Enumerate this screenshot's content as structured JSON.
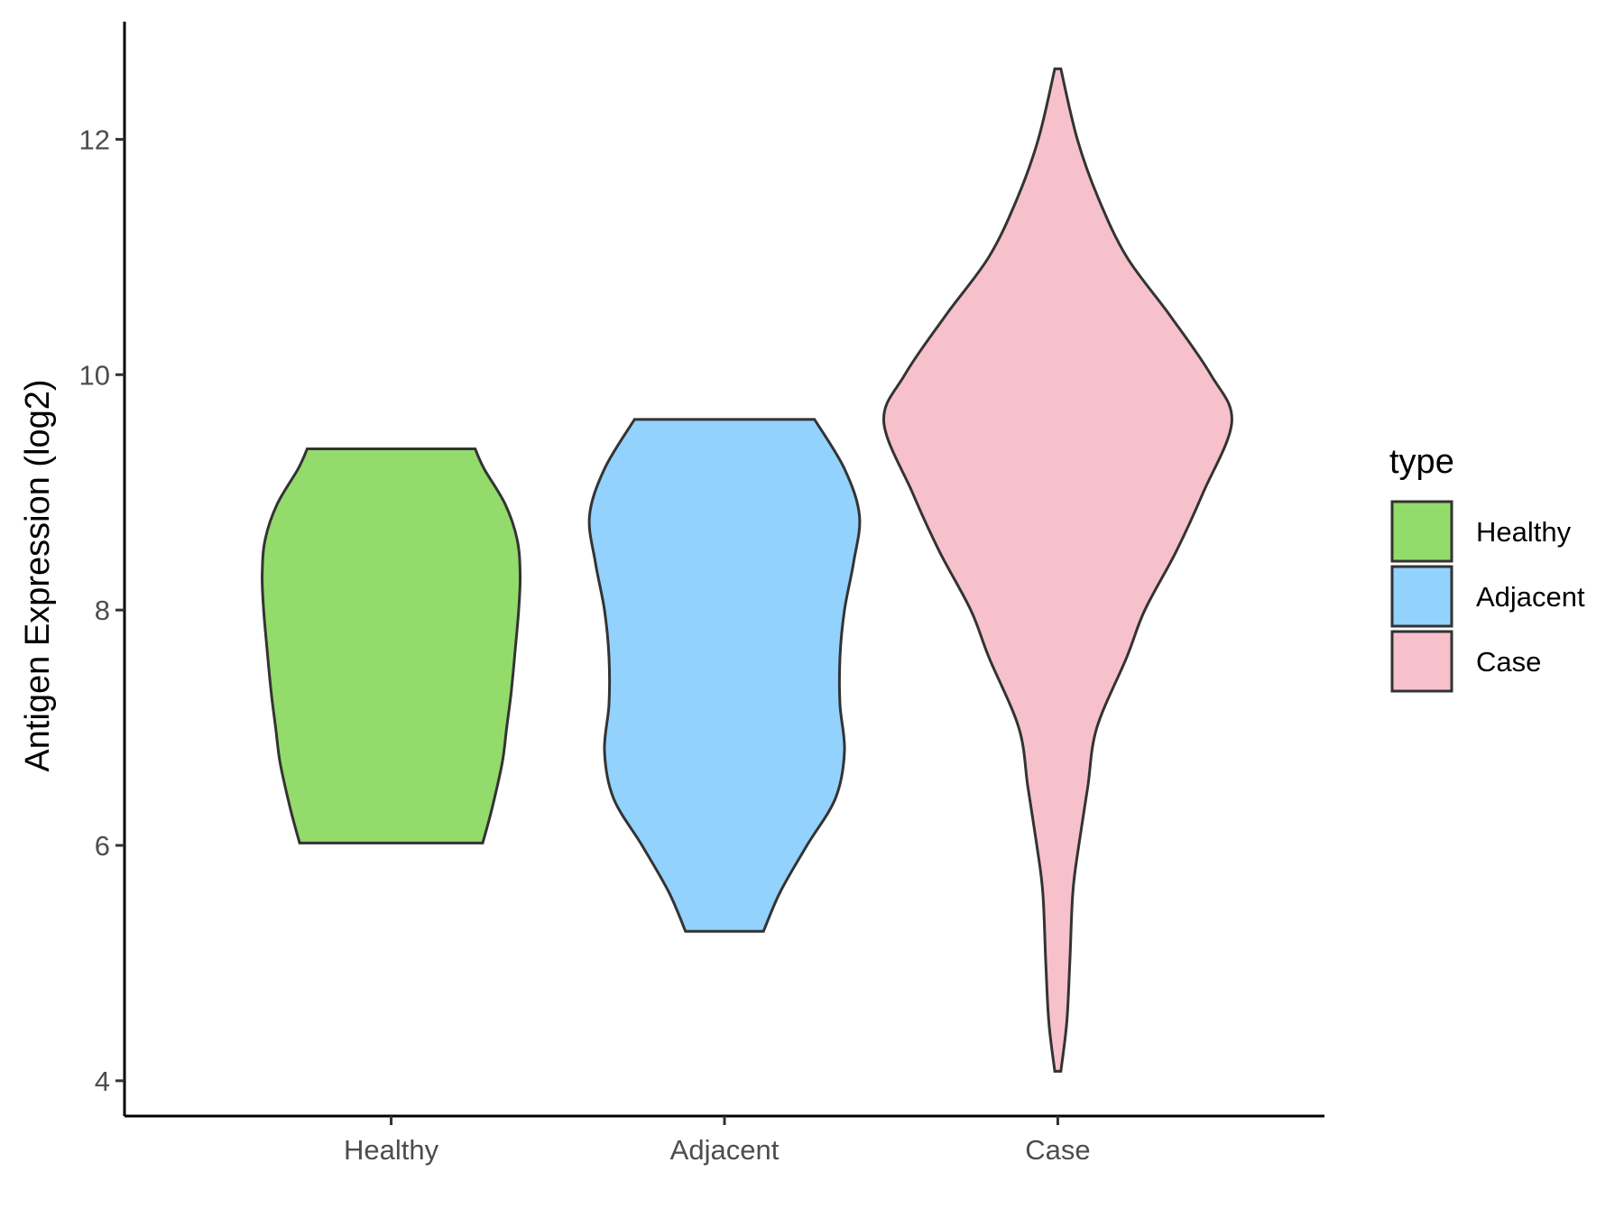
{
  "chart_data": {
    "type": "violin",
    "title": "",
    "xlabel": "",
    "ylabel": "Antigen Expression (log2)",
    "ylim": [
      3.7,
      13.0
    ],
    "yticks": [
      4,
      6,
      8,
      10,
      12
    ],
    "grid": false,
    "categories": [
      "Healthy",
      "Adjacent",
      "Case"
    ],
    "legend": {
      "title": "type",
      "position": "right",
      "entries": [
        "Healthy",
        "Adjacent",
        "Case"
      ]
    },
    "series": [
      {
        "name": "Healthy",
        "color": "#93DB6B",
        "min": 6.02,
        "max": 9.37,
        "profile": [
          [
            6.02,
            0.61
          ],
          [
            6.3,
            0.67
          ],
          [
            6.7,
            0.74
          ],
          [
            7.0,
            0.77
          ],
          [
            7.3,
            0.8
          ],
          [
            7.7,
            0.83
          ],
          [
            8.0,
            0.85
          ],
          [
            8.3,
            0.86
          ],
          [
            8.6,
            0.84
          ],
          [
            8.9,
            0.76
          ],
          [
            9.2,
            0.62
          ],
          [
            9.37,
            0.56
          ]
        ]
      },
      {
        "name": "Adjacent",
        "color": "#92D2FD",
        "min": 5.27,
        "max": 9.62,
        "profile": [
          [
            5.27,
            0.26
          ],
          [
            5.6,
            0.37
          ],
          [
            6.0,
            0.55
          ],
          [
            6.4,
            0.74
          ],
          [
            6.8,
            0.8
          ],
          [
            7.2,
            0.77
          ],
          [
            7.6,
            0.77
          ],
          [
            8.0,
            0.8
          ],
          [
            8.4,
            0.86
          ],
          [
            8.8,
            0.9
          ],
          [
            9.2,
            0.8
          ],
          [
            9.62,
            0.6
          ]
        ]
      },
      {
        "name": "Case",
        "color": "#F7C1CC",
        "min": 4.08,
        "max": 12.6,
        "profile": [
          [
            4.08,
            0.02
          ],
          [
            4.5,
            0.06
          ],
          [
            5.0,
            0.08
          ],
          [
            5.6,
            0.1
          ],
          [
            6.0,
            0.14
          ],
          [
            6.5,
            0.2
          ],
          [
            7.0,
            0.26
          ],
          [
            7.6,
            0.46
          ],
          [
            8.0,
            0.58
          ],
          [
            8.5,
            0.79
          ],
          [
            9.0,
            0.97
          ],
          [
            9.6,
            1.16
          ],
          [
            10.0,
            1.02
          ],
          [
            10.5,
            0.75
          ],
          [
            11.0,
            0.46
          ],
          [
            11.5,
            0.27
          ],
          [
            12.0,
            0.13
          ],
          [
            12.6,
            0.02
          ]
        ]
      }
    ]
  }
}
